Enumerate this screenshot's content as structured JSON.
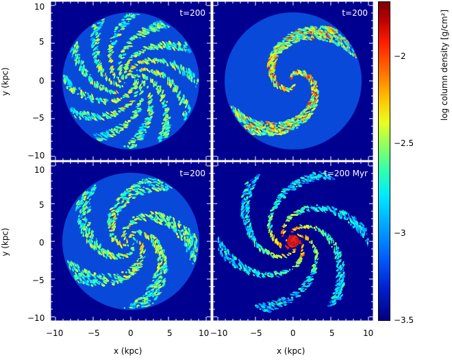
{
  "panels": [
    {
      "time_label": "t=200"
    },
    {
      "time_label": "t=200"
    },
    {
      "time_label": "t=200"
    },
    {
      "time_label": "t=200   Myr"
    }
  ],
  "axes": {
    "y_label": "y (kpc)",
    "x_label": "x (kpc)",
    "y_ticks_top": [
      "10",
      "5",
      "0",
      "−5",
      "−10"
    ],
    "y_ticks_bottom": [
      "10",
      "5",
      "0",
      "−5",
      "−10"
    ],
    "x_ticks_left": [
      "−10",
      "−5",
      "0",
      "5",
      "10"
    ],
    "x_ticks_right": [
      "−10",
      "−5",
      "0",
      "5",
      "10"
    ]
  },
  "colorbar": {
    "label": "log column density [g/cm²]",
    "ticks": [
      "−2",
      "−2.5",
      "−3",
      "−3.5"
    ],
    "colors": [
      "#7a0000",
      "#ff2000",
      "#ffc800",
      "#90ff60",
      "#00e8ff",
      "#0060ff",
      "#000080"
    ]
  }
}
